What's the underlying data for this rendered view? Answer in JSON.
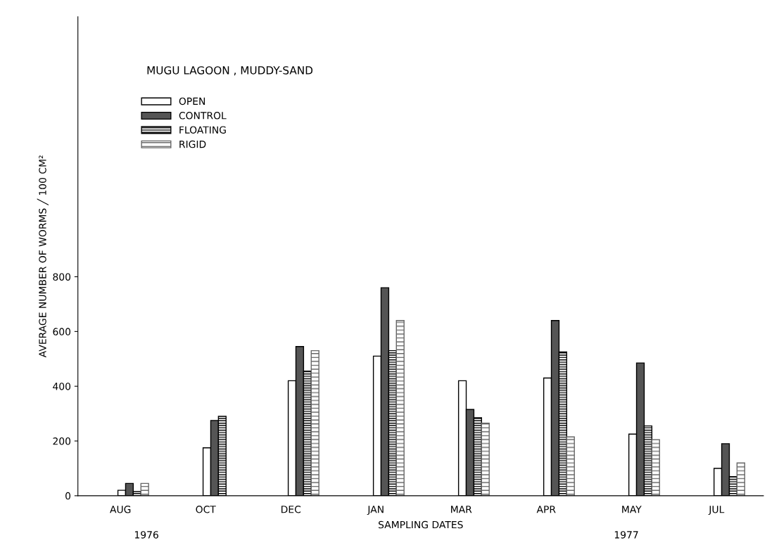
{
  "chart_data": {
    "type": "bar",
    "title": "MUGU LAGOON , MUDDY-SAND",
    "xlabel": "SAMPLING DATES",
    "ylabel": "AVERAGE NUMBER OF WORMS ╱ 100 CM²",
    "categories": [
      "AUG",
      "OCT",
      "DEC",
      "JAN",
      "MAR",
      "APR",
      "MAY",
      "JUL"
    ],
    "series": [
      {
        "name": "OPEN",
        "color": "#ffffff",
        "values": [
          20,
          175,
          420,
          510,
          420,
          430,
          225,
          100
        ]
      },
      {
        "name": "CONTROL",
        "color": "#555555",
        "values": [
          45,
          275,
          545,
          760,
          315,
          640,
          485,
          190
        ]
      },
      {
        "name": "FLOATING",
        "color": "#000000",
        "values": [
          15,
          290,
          455,
          530,
          285,
          525,
          255,
          70
        ]
      },
      {
        "name": "RIGID",
        "color": "#666666",
        "values": [
          45,
          null,
          530,
          640,
          265,
          215,
          205,
          120
        ]
      }
    ],
    "ylim": [
      0,
      1750
    ],
    "yticks": [
      0,
      200,
      400,
      600,
      800
    ],
    "grid": false,
    "legend": "top left",
    "annotations": [
      "1976",
      "1977"
    ]
  }
}
